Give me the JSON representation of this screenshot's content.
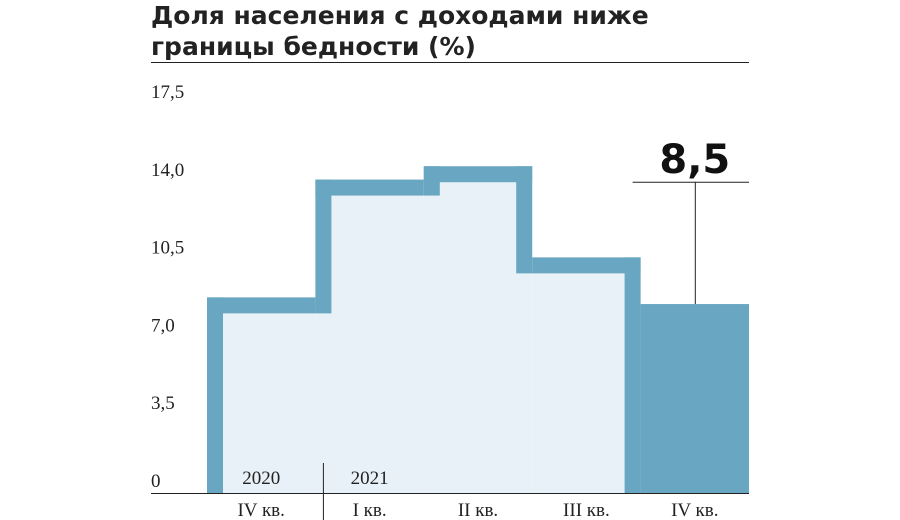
{
  "chart_data": {
    "type": "bar",
    "title": "Доля населения с доходами ниже границы бедности (%)",
    "categories": [
      "IV кв.",
      "I кв.",
      "II кв.",
      "III кв.",
      "IV кв."
    ],
    "years": [
      {
        "label": "2020",
        "category_index": 0
      },
      {
        "label": "2021",
        "category_index": 1
      }
    ],
    "values": [
      8.8,
      14.1,
      14.7,
      10.6,
      8.5
    ],
    "highlight_index": 4,
    "callout": {
      "label": "8,5",
      "category_index": 4
    },
    "yticks": [
      "0",
      "3,5",
      "7,0",
      "10,5",
      "14,0",
      "17,5"
    ],
    "ylim": [
      0,
      17.5
    ],
    "grid": false,
    "colors": {
      "outline": "#69a6c1",
      "fill": "#e8f1f7",
      "highlight": "#69a6c1",
      "text": "#222222"
    }
  }
}
